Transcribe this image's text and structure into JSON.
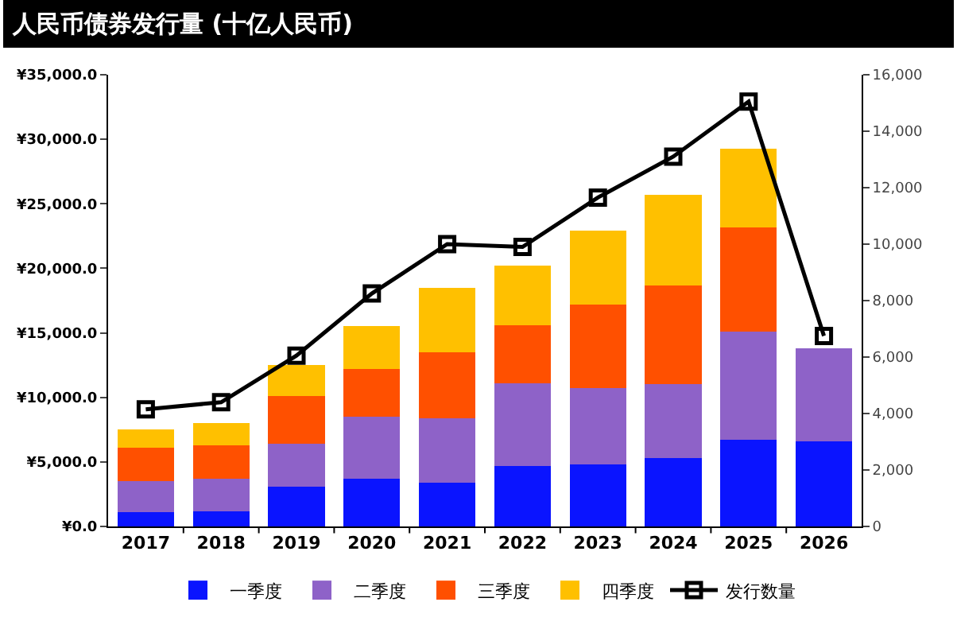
{
  "chart_data": {
    "type": "bar",
    "title": "人民币债券发行量 (十亿人民币)",
    "stacked": true,
    "categories": [
      "2017",
      "2018",
      "2019",
      "2020",
      "2021",
      "2022",
      "2023",
      "2024",
      "2025",
      "2026"
    ],
    "series": [
      {
        "name": "一季度",
        "color": "#0a14ff",
        "values": [
          1100,
          1200,
          3100,
          3700,
          3400,
          4700,
          4800,
          5300,
          6700,
          6600
        ]
      },
      {
        "name": "二季度",
        "color": "#8e62c8",
        "values": [
          2400,
          2500,
          3300,
          4800,
          5000,
          6400,
          5900,
          5700,
          8400,
          7200
        ]
      },
      {
        "name": "三季度",
        "color": "#ff5000",
        "values": [
          2600,
          2600,
          3700,
          3700,
          5100,
          4500,
          6500,
          7700,
          8100,
          null
        ]
      },
      {
        "name": "四季度",
        "color": "#ffc000",
        "values": [
          1400,
          1700,
          2400,
          3300,
          5000,
          4600,
          5700,
          7000,
          6100,
          null
        ]
      },
      {
        "name": "发行数量",
        "type": "line",
        "axis": "y2",
        "color": "#000000",
        "values": [
          4150,
          4400,
          6050,
          8250,
          10000,
          9900,
          11650,
          13100,
          15050,
          6750
        ]
      }
    ],
    "ylim": [
      0,
      35000
    ],
    "yticks": [
      {
        "value": 0,
        "label": "¥0.0"
      },
      {
        "value": 5000,
        "label": "¥5,000.0"
      },
      {
        "value": 10000,
        "label": "¥10,000.0"
      },
      {
        "value": 15000,
        "label": "¥15,000.0"
      },
      {
        "value": 20000,
        "label": "¥20,000.0"
      },
      {
        "value": 25000,
        "label": "¥25,000.0"
      },
      {
        "value": 30000,
        "label": "¥30,000.0"
      },
      {
        "value": 35000,
        "label": "¥35,000.0"
      }
    ],
    "y2lim": [
      0,
      16000
    ],
    "y2ticks": [
      0,
      {
        "value": 2000,
        "label": "2,000"
      },
      {
        "value": 4000,
        "label": "4,000"
      },
      {
        "value": 6000,
        "label": "6,000"
      },
      {
        "value": 8000,
        "label": "8,000"
      },
      {
        "value": 10000,
        "label": "10,000"
      },
      {
        "value": 12000,
        "label": "12,000"
      },
      {
        "value": 14000,
        "label": "14,000"
      },
      {
        "value": 16000,
        "label": "16,000"
      }
    ],
    "grid": false,
    "legend": "bottom",
    "marker": "square",
    "line_style": "solid"
  }
}
